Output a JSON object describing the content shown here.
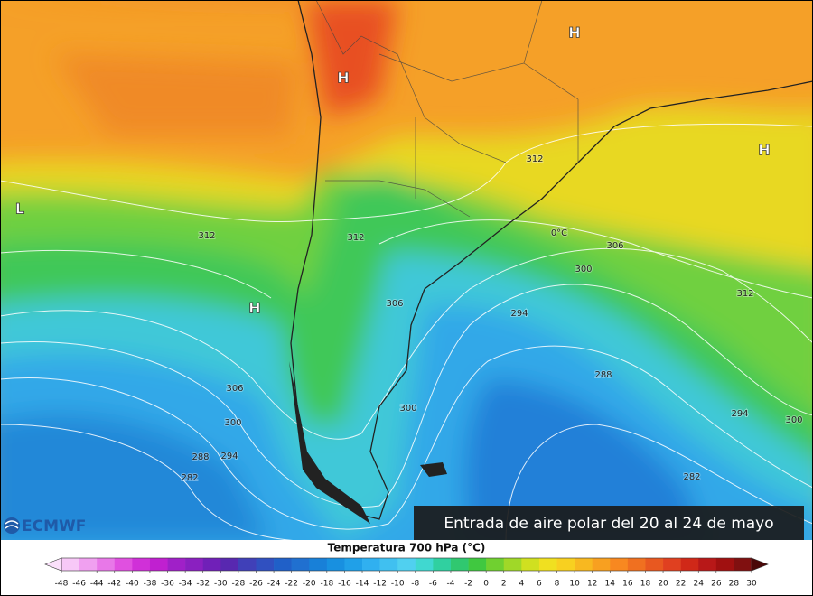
{
  "map": {
    "pressure_centers": [
      "H",
      "H",
      "H",
      "L",
      "H"
    ],
    "contour_labels": [
      312,
      312,
      312,
      306,
      300,
      312,
      306,
      294,
      288,
      306,
      300,
      294,
      300,
      300,
      288,
      294,
      282,
      282
    ],
    "freezing_label": "0°C"
  },
  "logo": "ECMWF",
  "caption": "Entrada de aire polar del 20 al 24 de mayo",
  "colorbar": {
    "title": "Temperatura 700 hPa (°C)",
    "ticks": [
      -48,
      -46,
      -44,
      -42,
      -40,
      -38,
      -36,
      -34,
      -32,
      -30,
      -28,
      -26,
      -24,
      -22,
      -20,
      -18,
      -16,
      -14,
      -12,
      -10,
      -8,
      -6,
      -4,
      -2,
      0,
      2,
      4,
      6,
      8,
      10,
      12,
      14,
      16,
      18,
      20,
      22,
      24,
      26,
      28,
      30
    ],
    "colors": [
      "#f7c8f7",
      "#f0a0f0",
      "#e878e8",
      "#e050e0",
      "#d030d8",
      "#c020d0",
      "#a020c8",
      "#8a20c0",
      "#7020b8",
      "#5828b0",
      "#4040b8",
      "#3050c0",
      "#2060c8",
      "#2070d0",
      "#1880d8",
      "#1890e0",
      "#20a0e8",
      "#30b0f0",
      "#40c0f0",
      "#50d0f0",
      "#40d8d0",
      "#30d0a0",
      "#30c870",
      "#40c840",
      "#70d030",
      "#a0d828",
      "#d0e020",
      "#f0e020",
      "#f8d020",
      "#f8b820",
      "#f8a020",
      "#f88820",
      "#f07020",
      "#e85820",
      "#e04020",
      "#d02818",
      "#b81818",
      "#a01010",
      "#801010"
    ],
    "under_color": "#fbe0fb",
    "over_color": "#4a0808"
  }
}
